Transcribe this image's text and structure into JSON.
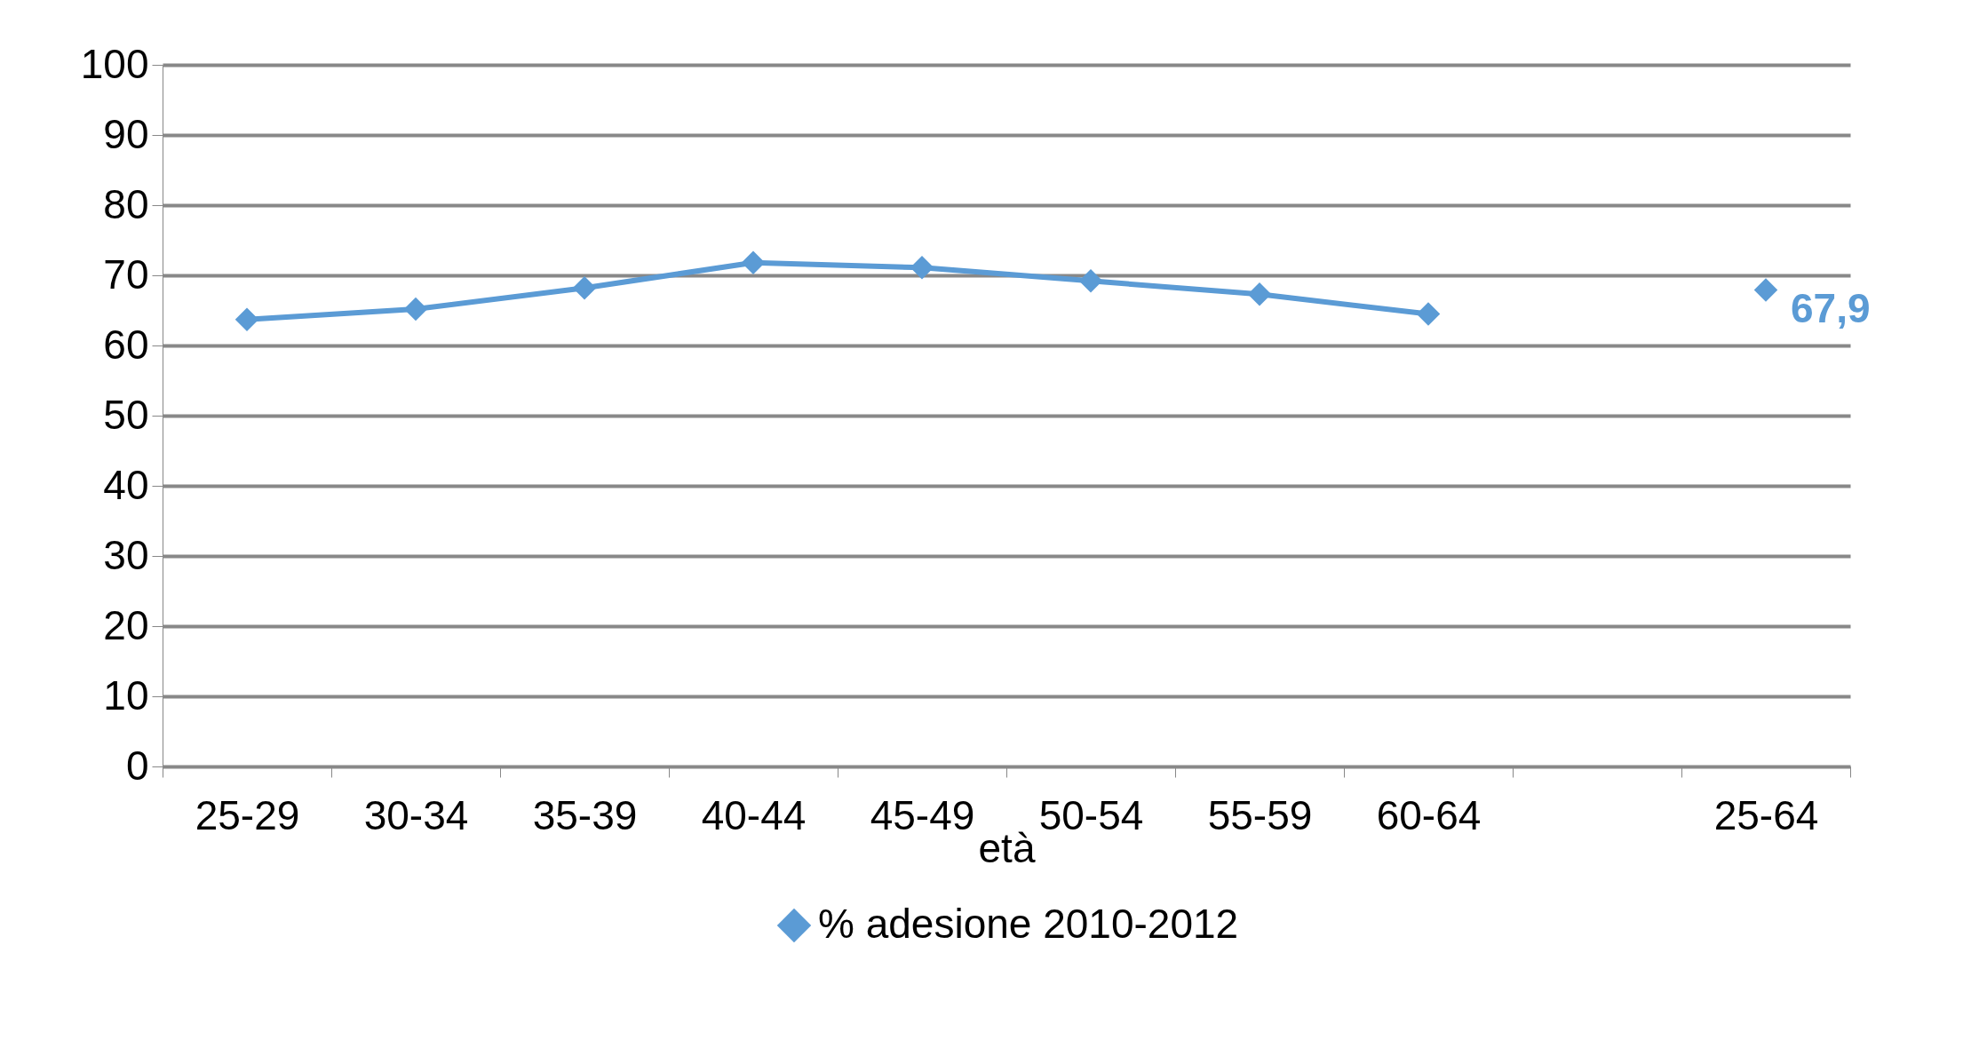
{
  "chart_data": {
    "type": "line",
    "xlabel": "età",
    "categories": [
      "25-29",
      "30-34",
      "35-39",
      "40-44",
      "45-49",
      "50-54",
      "55-59",
      "60-64",
      null,
      "25-64"
    ],
    "series": [
      {
        "name": "% adesione 2010-2012",
        "color": "#5b9bd5",
        "values": [
          63.7,
          65.2,
          68.2,
          71.8,
          71.1,
          69.2,
          67.3,
          64.5,
          null,
          67.9
        ],
        "value_labels": [
          null,
          null,
          null,
          null,
          null,
          null,
          null,
          null,
          null,
          "67,9"
        ]
      }
    ],
    "ylim": [
      0,
      100
    ],
    "yticks": [
      0,
      10,
      20,
      30,
      40,
      50,
      60,
      70,
      80,
      90,
      100
    ],
    "grid": "y",
    "legend": "bottom",
    "marker": "diamond",
    "line_style": "solid"
  }
}
